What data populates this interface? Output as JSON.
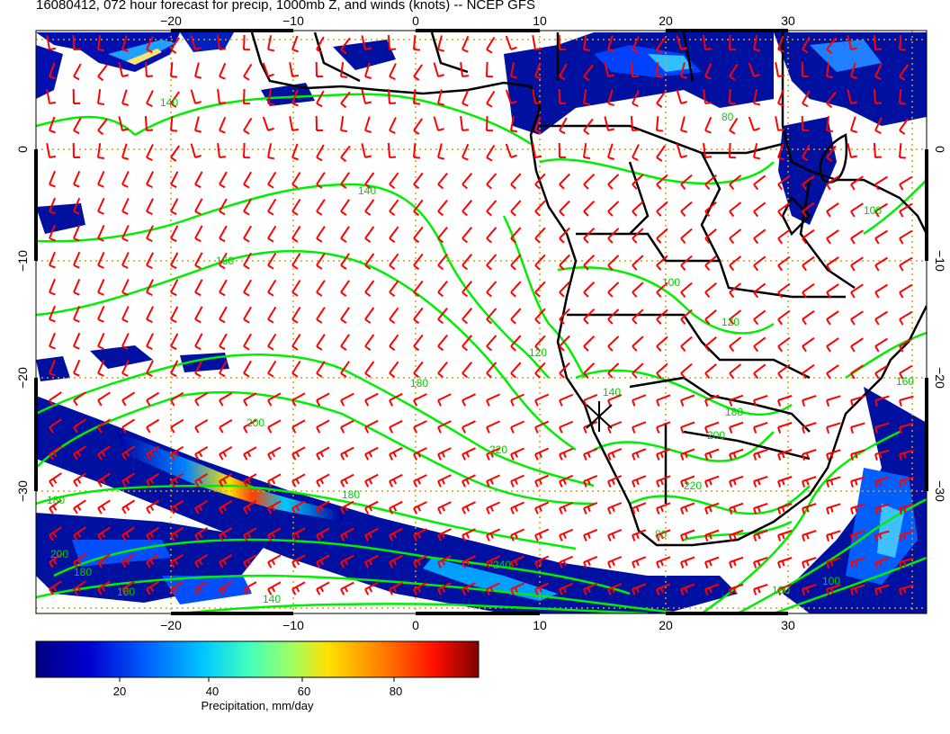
{
  "title": "16080412, 072 hour forecast for precip, 1000mb Z, and winds (knots) -- NCEP GFS",
  "axes": {
    "lon_ticks_top": [
      "−20",
      "−10",
      "0",
      "10",
      "20",
      "30"
    ],
    "lon_ticks_bottom": [
      "−20",
      "−10",
      "0",
      "10",
      "20",
      "30"
    ],
    "lat_ticks_left": [
      "0",
      "−10",
      "−20",
      "−30"
    ],
    "lat_ticks_right": [
      "0",
      "−10",
      "−20",
      "−30"
    ]
  },
  "contour_labels": [
    "140",
    "140",
    "160",
    "180",
    "180",
    "180",
    "200",
    "200",
    "220",
    "240",
    "180",
    "160",
    "140",
    "120",
    "100",
    "80",
    "100",
    "120",
    "140",
    "160",
    "180",
    "200",
    "220",
    "80",
    "100",
    "160"
  ],
  "colorbar": {
    "label": "Precipitation, mm/day",
    "ticks": [
      "20",
      "40",
      "60",
      "80"
    ],
    "range": [
      0,
      100
    ],
    "colors": [
      "#00007f",
      "#0000d0",
      "#0060ff",
      "#00c8ff",
      "#40ffc0",
      "#a0ff60",
      "#ffe000",
      "#ff8000",
      "#ff1000",
      "#800000"
    ]
  },
  "colors": {
    "contour": "#00ee00",
    "wind_barb": "#ff0000",
    "grid": "#d4a017",
    "coast": "#000000"
  }
}
